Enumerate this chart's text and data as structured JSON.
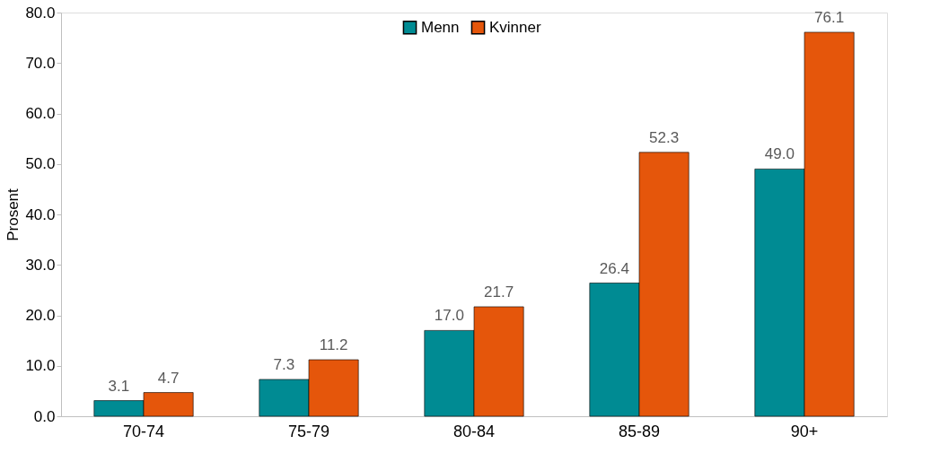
{
  "chart_data": {
    "type": "bar",
    "ylabel": "Prosent",
    "categories": [
      "70-74",
      "75-79",
      "80-84",
      "85-89",
      "90+"
    ],
    "series": [
      {
        "name": "Menn",
        "color": "#008b93",
        "values": [
          3.1,
          7.3,
          17.0,
          26.4,
          49.0
        ],
        "value_labels": [
          "3.1",
          "7.3",
          "17.0",
          "26.4",
          "49.0"
        ]
      },
      {
        "name": "Kvinner",
        "color": "#e5560b",
        "values": [
          4.7,
          11.2,
          21.7,
          52.3,
          76.1
        ],
        "value_labels": [
          "4.7",
          "11.2",
          "21.7",
          "52.3",
          "76.1"
        ]
      }
    ],
    "ylim": [
      0,
      80
    ],
    "yticks": [
      {
        "value": 0,
        "label": "0.0"
      },
      {
        "value": 10,
        "label": "10.0"
      },
      {
        "value": 20,
        "label": "20.0"
      },
      {
        "value": 30,
        "label": "30.0"
      },
      {
        "value": 40,
        "label": "40.0"
      },
      {
        "value": 50,
        "label": "50.0"
      },
      {
        "value": 60,
        "label": "60.0"
      },
      {
        "value": 70,
        "label": "70.0"
      },
      {
        "value": 80,
        "label": "80.0"
      }
    ],
    "grid": false,
    "legend": "top"
  }
}
